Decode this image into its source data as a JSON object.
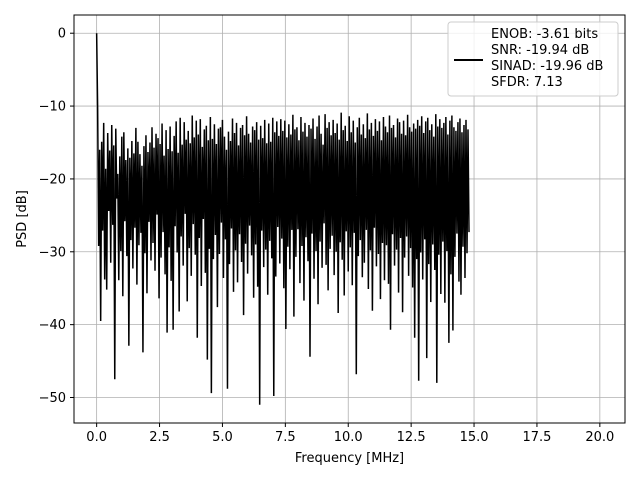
{
  "chart_data": {
    "type": "line",
    "title": "",
    "xlabel": "Frequency [MHz]",
    "ylabel": "PSD [dB]",
    "xlim": [
      -0.9,
      21.0
    ],
    "ylim": [
      -53.5,
      2.5
    ],
    "xticks": [
      0.0,
      2.5,
      5.0,
      7.5,
      10.0,
      12.5,
      15.0,
      17.5,
      20.0
    ],
    "xtick_labels": [
      "0.0",
      "2.5",
      "5.0",
      "7.5",
      "10.0",
      "12.5",
      "15.0",
      "17.5",
      "20.0"
    ],
    "yticks": [
      0,
      -10,
      -20,
      -30,
      -40,
      -50
    ],
    "ytick_labels": [
      "0",
      "−10",
      "−20",
      "−30",
      "−40",
      "−50"
    ],
    "grid": true,
    "legend_position": "top-right",
    "legend_lines": [
      "ENOB: -3.61 bits",
      "SNR: -19.94 dB",
      "SINAD: -19.96 dB",
      "SFDR: 7.13"
    ],
    "line_color": "#000000",
    "series": [
      {
        "x_start": 0.0,
        "x_step": 0.04,
        "values": [
          0.0,
          -10.4,
          -29.2,
          -16.0,
          -39.5,
          -14.9,
          -27.1,
          -12.3,
          -33.8,
          -18.6,
          -35.2,
          -13.7,
          -24.4,
          -16.1,
          -31.5,
          -12.6,
          -26.3,
          -15.4,
          -47.5,
          -13.1,
          -22.7,
          -19.3,
          -33.9,
          -16.9,
          -29.9,
          -14.2,
          -36.1,
          -13.6,
          -25.8,
          -17.4,
          -30.6,
          -15.8,
          -42.9,
          -17.1,
          -28.4,
          -14.8,
          -32.3,
          -16.5,
          -26.7,
          -13.0,
          -34.5,
          -14.9,
          -29.1,
          -16.6,
          -27.4,
          -18.2,
          -43.8,
          -15.5,
          -30.2,
          -14.0,
          -35.7,
          -16.3,
          -25.9,
          -15.0,
          -31.2,
          -12.9,
          -28.8,
          -15.7,
          -32.6,
          -13.8,
          -24.9,
          -14.4,
          -36.4,
          -15.2,
          -30.8,
          -12.4,
          -27.3,
          -16.8,
          -33.1,
          -13.3,
          -41.1,
          -15.9,
          -29.4,
          -12.8,
          -34.0,
          -16.2,
          -40.7,
          -14.1,
          -26.5,
          -12.1,
          -30.1,
          -16.4,
          -38.2,
          -11.6,
          -27.9,
          -15.3,
          -31.9,
          -12.2,
          -24.8,
          -14.6,
          -36.8,
          -13.4,
          -29.5,
          -15.1,
          -33.3,
          -11.3,
          -26.2,
          -14.3,
          -30.4,
          -12.0,
          -41.8,
          -13.9,
          -28.1,
          -11.8,
          -34.7,
          -15.6,
          -25.5,
          -13.2,
          -32.9,
          -12.7,
          -44.8,
          -14.7,
          -29.6,
          -11.5,
          -49.4,
          -14.5,
          -31.0,
          -12.5,
          -27.7,
          -15.2,
          -37.6,
          -13.1,
          -30.3,
          -12.9,
          -26.0,
          -11.9,
          -33.6,
          -14.2,
          -28.3,
          -16.0,
          -48.8,
          -13.5,
          -31.7,
          -14.8,
          -26.8,
          -11.7,
          -35.5,
          -13.7,
          -29.8,
          -12.3,
          -34.2,
          -15.4,
          -27.6,
          -13.0,
          -31.4,
          -12.6,
          -38.7,
          -14.0,
          -28.9,
          -11.4,
          -33.0,
          -13.8,
          -26.4,
          -15.0,
          -30.5,
          -12.8,
          -36.3,
          -13.3,
          -29.0,
          -12.2,
          -34.8,
          -14.6,
          -51.0,
          -12.7,
          -27.1,
          -14.4,
          -32.1,
          -11.9,
          -29.7,
          -15.1,
          -35.9,
          -12.4,
          -28.5,
          -14.9,
          -30.9,
          -11.6,
          -49.8,
          -13.6,
          -33.4,
          -12.1,
          -26.6,
          -14.1,
          -31.6,
          -11.8,
          -28.2,
          -13.4,
          -35.0,
          -12.0,
          -40.6,
          -14.3,
          -29.3,
          -12.5,
          -32.4,
          -13.9,
          -27.0,
          -11.2,
          -38.9,
          -13.2,
          -30.7,
          -12.9,
          -26.9,
          -14.7,
          -34.3,
          -11.5,
          -29.2,
          -13.5,
          -36.7,
          -12.3,
          -28.0,
          -14.2,
          -31.3,
          -12.6,
          -44.4,
          -13.1,
          -27.5,
          -11.7,
          -33.7,
          -14.5,
          -29.9,
          -12.8,
          -37.2,
          -11.3,
          -28.6,
          -13.8,
          -32.2,
          -15.3,
          -26.1,
          -11.1,
          -31.8,
          -13.0,
          -35.3,
          -12.2,
          -29.6,
          -14.0,
          -27.8,
          -11.9,
          -33.2,
          -13.7,
          -30.0,
          -12.4,
          -38.4,
          -14.6,
          -28.7,
          -10.9,
          -31.1,
          -13.3,
          -36.0,
          -12.7,
          -27.2,
          -14.8,
          -32.7,
          -11.4,
          -29.4,
          -13.6,
          -34.6,
          -12.0,
          -27.4,
          -15.0,
          -46.8,
          -12.9,
          -30.6,
          -11.6,
          -28.4,
          -13.9,
          -33.5,
          -12.5,
          -31.5,
          -14.4,
          -27.0,
          -11.0,
          -35.1,
          -13.2,
          -29.8,
          -12.3,
          -38.1,
          -14.1,
          -26.7,
          -11.8,
          -32.0,
          -13.4,
          -30.3,
          -12.1,
          -36.5,
          -14.7,
          -28.8,
          -11.5,
          -33.9,
          -12.8,
          -29.1,
          -13.6,
          -34.4,
          -11.3,
          -40.7,
          -13.0,
          -27.6,
          -12.6,
          -31.9,
          -14.3,
          -29.7,
          -11.7,
          -35.6,
          -12.2,
          -28.1,
          -13.8,
          -38.3,
          -12.0,
          -30.8,
          -14.0,
          -27.9,
          -11.2,
          -33.3,
          -12.9,
          -29.5,
          -13.5,
          -34.9,
          -12.4,
          -41.8,
          -13.1,
          -31.0,
          -11.9,
          -47.7,
          -12.7,
          -30.1,
          -11.4,
          -33.8,
          -13.7,
          -28.3,
          -12.1,
          -44.6,
          -11.6,
          -31.7,
          -13.3,
          -36.9,
          -12.5,
          -29.0,
          -14.2,
          -32.5,
          -11.1,
          -48.0,
          -12.8,
          -30.4,
          -11.8,
          -35.8,
          -13.0,
          -28.6,
          -12.3,
          -37.0,
          -11.5,
          -29.9,
          -13.9,
          -42.5,
          -12.0,
          -33.1,
          -11.3,
          -40.8,
          -12.9,
          -30.7,
          -13.4,
          -27.5,
          -12.2,
          -34.1,
          -11.7,
          -35.9,
          -13.6,
          -29.3,
          -12.6,
          -33.6,
          -11.9,
          -30.2,
          -13.2,
          -27.3
        ]
      }
    ]
  }
}
